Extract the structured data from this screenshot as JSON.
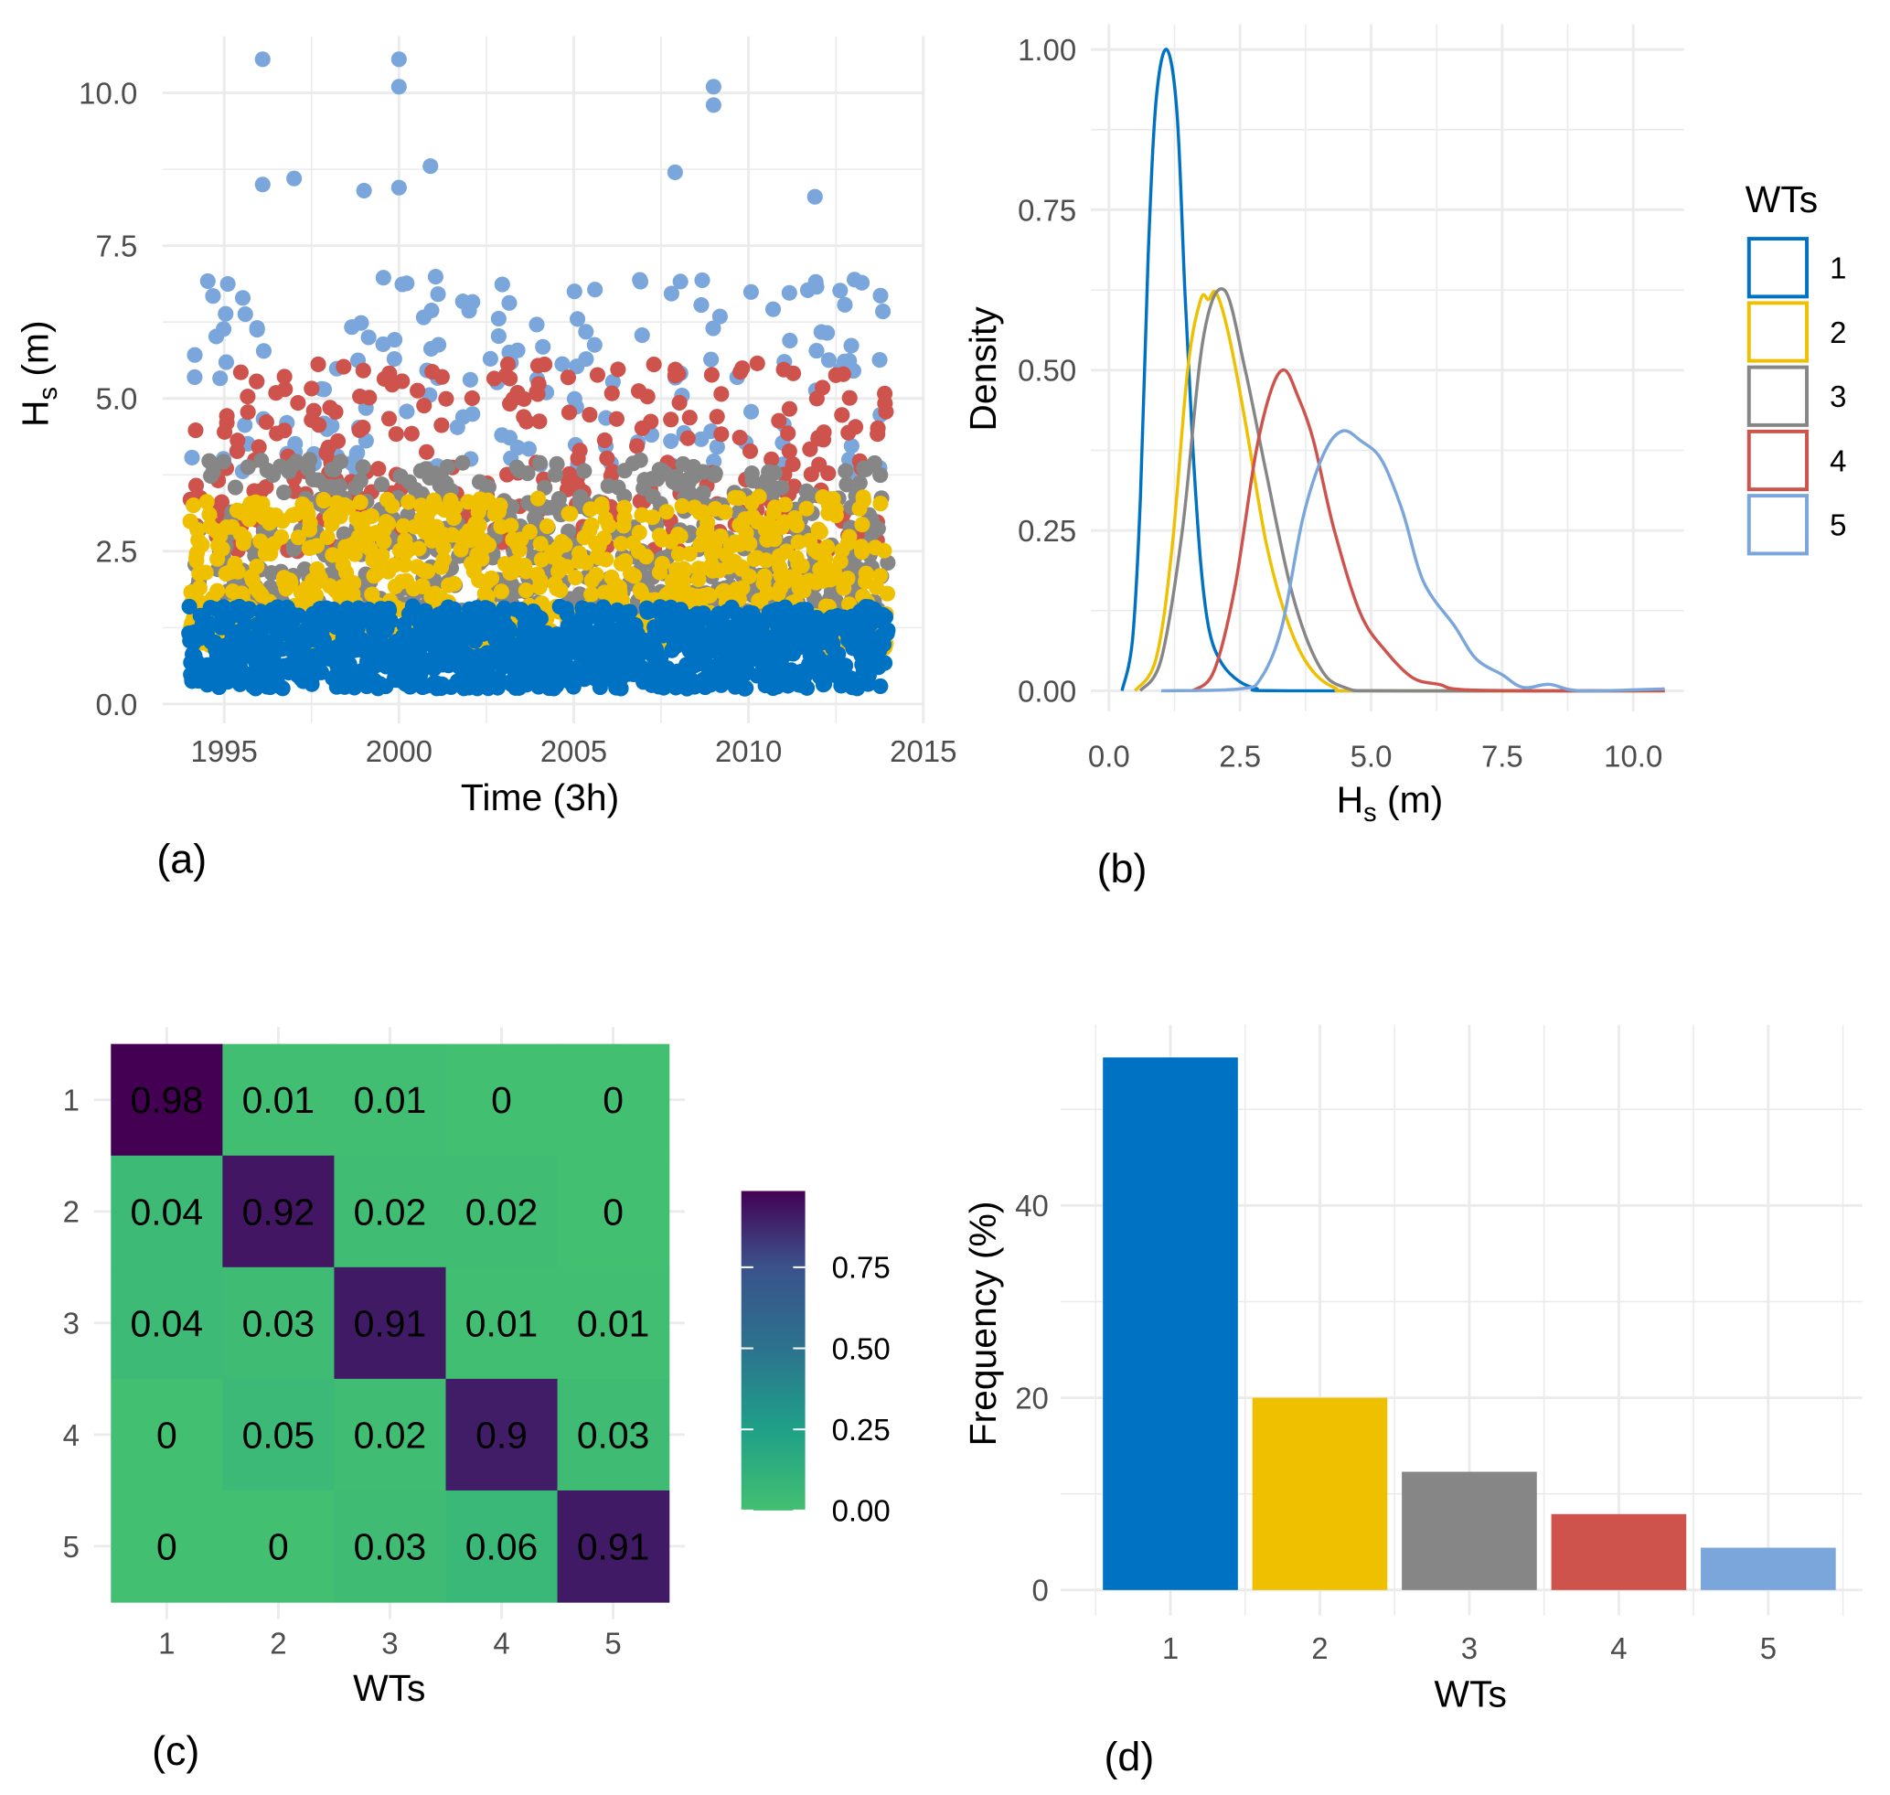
{
  "colors": {
    "1": "#0072c3",
    "2": "#efc000",
    "3": "#868686",
    "4": "#cd534c",
    "5": "#7aa6dc"
  },
  "chart_data": [
    {
      "panel": "(a)",
      "type": "scatter",
      "xlabel": "Time (3h)",
      "ylabel": {
        "main": "H",
        "sub": "s",
        "unit": " (m)"
      },
      "xlim": [
        1993.2,
        2015
      ],
      "ylim": [
        0,
        11
      ],
      "xticks": [
        "1995",
        "2000",
        "2005",
        "2010",
        "2015"
      ],
      "yticks": [
        "0.0",
        "2.5",
        "5.0",
        "7.5",
        "10.0"
      ],
      "time_range": [
        1994,
        2014
      ],
      "series": [
        {
          "wt": "1",
          "typical_range": [
            0.25,
            1.6
          ]
        },
        {
          "wt": "2",
          "typical_range": [
            0.9,
            3.4
          ]
        },
        {
          "wt": "3",
          "typical_range": [
            1.5,
            4.0
          ]
        },
        {
          "wt": "4",
          "typical_range": [
            2.5,
            5.6
          ]
        },
        {
          "wt": "5",
          "typical_range": [
            3.8,
            7.0
          ],
          "peaks": [
            [
              1996.1,
              10.55
            ],
            [
              1996.1,
              8.5
            ],
            [
              1997.0,
              8.6
            ],
            [
              1999.0,
              8.4
            ],
            [
              2000.0,
              10.55
            ],
            [
              2000.0,
              10.1
            ],
            [
              2000.0,
              8.45
            ],
            [
              2000.9,
              8.8
            ],
            [
              2007.9,
              8.7
            ],
            [
              2009.0,
              10.1
            ],
            [
              2009.0,
              9.8
            ],
            [
              2011.9,
              8.3
            ]
          ]
        }
      ],
      "grid": true
    },
    {
      "panel": "(b)",
      "type": "line",
      "xlabel": {
        "main": "H",
        "sub": "s",
        "unit": " (m)"
      },
      "ylabel": "Density",
      "xlim": [
        0,
        10.6
      ],
      "ylim": [
        0,
        1.0
      ],
      "xticks": [
        "0.0",
        "2.5",
        "5.0",
        "7.5",
        "10.0"
      ],
      "yticks": [
        "0.00",
        "0.25",
        "0.50",
        "0.75",
        "1.00"
      ],
      "legend": {
        "title": "WTs",
        "position": "right",
        "entries": [
          "1",
          "2",
          "3",
          "4",
          "5"
        ]
      },
      "series": [
        {
          "name": "1",
          "points": [
            [
              0.25,
              0
            ],
            [
              0.45,
              0.08
            ],
            [
              0.6,
              0.3
            ],
            [
              0.75,
              0.68
            ],
            [
              0.9,
              0.92
            ],
            [
              1.1,
              1.0
            ],
            [
              1.3,
              0.9
            ],
            [
              1.45,
              0.62
            ],
            [
              1.6,
              0.38
            ],
            [
              1.75,
              0.2
            ],
            [
              1.9,
              0.1
            ],
            [
              2.1,
              0.05
            ],
            [
              2.4,
              0.02
            ],
            [
              2.8,
              0.004
            ],
            [
              3.5,
              0
            ],
            [
              10.6,
              0
            ]
          ]
        },
        {
          "name": "2",
          "points": [
            [
              0.5,
              0
            ],
            [
              0.9,
              0.05
            ],
            [
              1.2,
              0.22
            ],
            [
              1.5,
              0.5
            ],
            [
              1.75,
              0.61
            ],
            [
              1.9,
              0.61
            ],
            [
              2.05,
              0.62
            ],
            [
              2.3,
              0.55
            ],
            [
              2.6,
              0.42
            ],
            [
              3.0,
              0.23
            ],
            [
              3.4,
              0.11
            ],
            [
              3.8,
              0.04
            ],
            [
              4.3,
              0.005
            ],
            [
              5.0,
              0
            ],
            [
              10.6,
              0
            ]
          ]
        },
        {
          "name": "3",
          "points": [
            [
              0.6,
              0
            ],
            [
              1.0,
              0.05
            ],
            [
              1.4,
              0.25
            ],
            [
              1.8,
              0.55
            ],
            [
              2.2,
              0.625
            ],
            [
              2.6,
              0.5
            ],
            [
              3.0,
              0.34
            ],
            [
              3.5,
              0.15
            ],
            [
              4.0,
              0.04
            ],
            [
              4.5,
              0.005
            ],
            [
              5.5,
              0
            ],
            [
              10.6,
              0
            ]
          ]
        },
        {
          "name": "4",
          "points": [
            [
              1.6,
              0
            ],
            [
              2.0,
              0.03
            ],
            [
              2.4,
              0.16
            ],
            [
              2.8,
              0.37
            ],
            [
              3.1,
              0.47
            ],
            [
              3.35,
              0.5
            ],
            [
              3.6,
              0.46
            ],
            [
              3.9,
              0.39
            ],
            [
              4.3,
              0.25
            ],
            [
              4.8,
              0.12
            ],
            [
              5.3,
              0.06
            ],
            [
              5.8,
              0.02
            ],
            [
              6.3,
              0.01
            ],
            [
              7.0,
              0.001
            ],
            [
              10.6,
              0
            ]
          ]
        },
        {
          "name": "5",
          "points": [
            [
              1.0,
              0
            ],
            [
              2.5,
              0.003
            ],
            [
              2.9,
              0.02
            ],
            [
              3.3,
              0.1
            ],
            [
              3.7,
              0.27
            ],
            [
              4.1,
              0.37
            ],
            [
              4.45,
              0.405
            ],
            [
              4.8,
              0.39
            ],
            [
              5.2,
              0.36
            ],
            [
              5.6,
              0.28
            ],
            [
              6.0,
              0.17
            ],
            [
              6.6,
              0.1
            ],
            [
              7.0,
              0.05
            ],
            [
              7.5,
              0.025
            ],
            [
              7.9,
              0.005
            ],
            [
              8.4,
              0.01
            ],
            [
              9.0,
              0
            ],
            [
              10.6,
              0.003
            ]
          ]
        }
      ],
      "grid": true
    },
    {
      "panel": "(c)",
      "type": "heatmap",
      "xlabel": "WTs",
      "ylabel": "",
      "rows": [
        "1",
        "2",
        "3",
        "4",
        "5"
      ],
      "cols": [
        "1",
        "2",
        "3",
        "4",
        "5"
      ],
      "values": [
        [
          "0.98",
          "0.01",
          "0.01",
          "0",
          "0"
        ],
        [
          "0.04",
          "0.92",
          "0.02",
          "0.02",
          "0"
        ],
        [
          "0.04",
          "0.03",
          "0.91",
          "0.01",
          "0.01"
        ],
        [
          "0",
          "0.05",
          "0.02",
          "0.9",
          "0.03"
        ],
        [
          "0",
          "0",
          "0.03",
          "0.06",
          "0.91"
        ]
      ],
      "colorbar": {
        "range": [
          0,
          0.98
        ],
        "ticks": [
          "0.00",
          "0.25",
          "0.50",
          "0.75"
        ],
        "palette": "viridis (reversed, green to purple)"
      }
    },
    {
      "panel": "(d)",
      "type": "bar",
      "xlabel": "WTs",
      "ylabel": "Frequency (%)",
      "categories": [
        "1",
        "2",
        "3",
        "4",
        "5"
      ],
      "values": [
        55.4,
        20.0,
        12.3,
        7.9,
        4.4
      ],
      "ylim": [
        0,
        57
      ],
      "yticks": [
        "0",
        "20",
        "40"
      ],
      "grid": true
    }
  ]
}
